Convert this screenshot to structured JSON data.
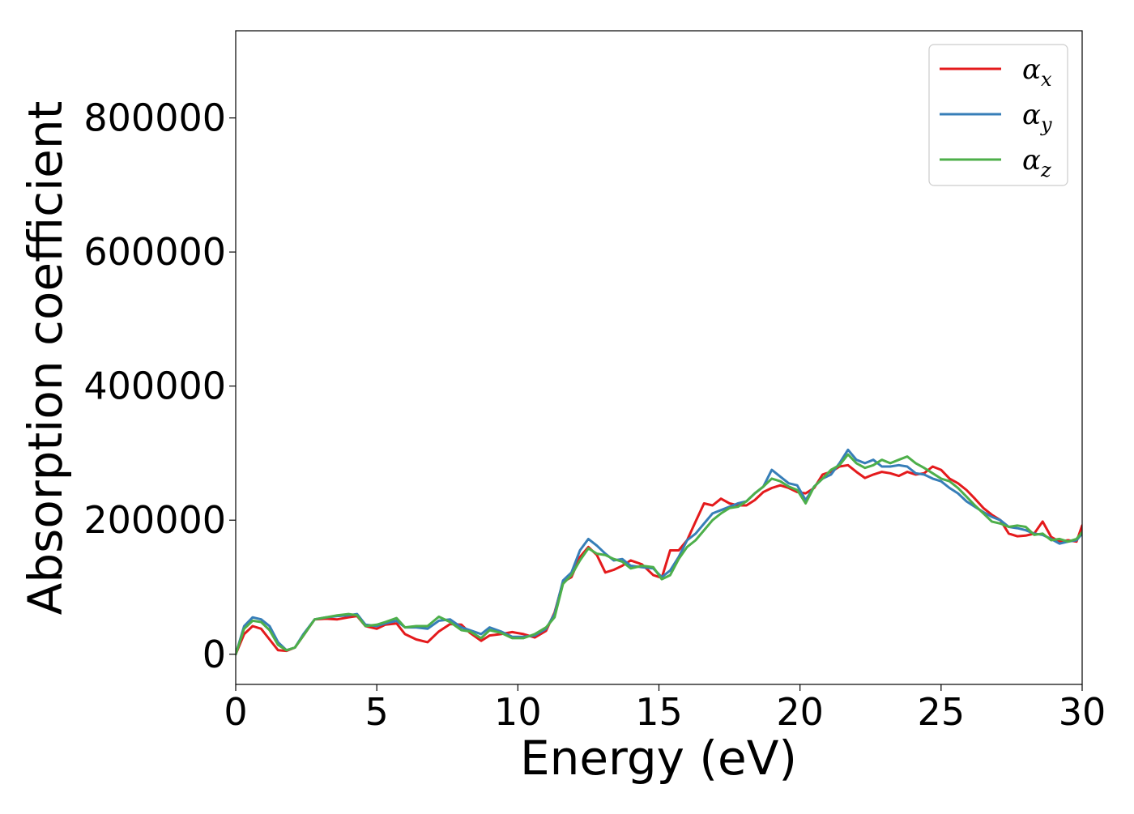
{
  "chart_data": {
    "type": "line",
    "title": "",
    "xlabel": "Energy (eV)",
    "ylabel": "Absorption coefficient",
    "xlim": [
      0,
      30
    ],
    "ylim": [
      -45000,
      930000
    ],
    "grid": false,
    "legend_position": "top-right",
    "xticks": [
      0,
      5,
      10,
      15,
      20,
      25,
      30
    ],
    "xtick_labels": [
      "0",
      "5",
      "10",
      "15",
      "20",
      "25",
      "30"
    ],
    "yticks": [
      0,
      200000,
      400000,
      600000,
      800000
    ],
    "ytick_labels": [
      "0",
      "200000",
      "400000",
      "600000",
      "800000"
    ],
    "series": [
      {
        "name": "αx",
        "symbol": "α",
        "subscript": "x",
        "color": "#e41a1c",
        "x": [
          0,
          0.3,
          0.6,
          0.9,
          1.2,
          1.5,
          1.8,
          2.1,
          2.4,
          2.8,
          3.2,
          3.6,
          4.0,
          4.3,
          4.6,
          5.0,
          5.3,
          5.7,
          6.0,
          6.4,
          6.8,
          7.2,
          7.6,
          8.0,
          8.3,
          8.7,
          9.0,
          9.4,
          9.8,
          10.2,
          10.6,
          11.0,
          11.3,
          11.6,
          11.9,
          12.2,
          12.5,
          12.8,
          13.1,
          13.4,
          13.7,
          14.0,
          14.4,
          14.8,
          15.1,
          15.4,
          15.7,
          16.0,
          16.3,
          16.6,
          16.9,
          17.2,
          17.5,
          17.8,
          18.1,
          18.4,
          18.7,
          19.0,
          19.3,
          19.6,
          19.9,
          20.2,
          20.5,
          20.8,
          21.1,
          21.4,
          21.7,
          22.0,
          22.3,
          22.6,
          22.9,
          23.2,
          23.5,
          23.8,
          24.1,
          24.4,
          24.7,
          25.0,
          25.3,
          25.6,
          25.9,
          26.2,
          26.5,
          26.8,
          27.1,
          27.4,
          27.7,
          28.0,
          28.3,
          28.6,
          28.9,
          29.2,
          29.5,
          29.8,
          30.0
        ],
        "y": [
          0,
          30000,
          42000,
          38000,
          22000,
          6000,
          5000,
          10000,
          28000,
          52000,
          53000,
          52000,
          55000,
          57000,
          42000,
          38000,
          44000,
          46000,
          30000,
          22000,
          18000,
          34000,
          45000,
          44000,
          32000,
          20000,
          28000,
          30000,
          33000,
          30000,
          25000,
          35000,
          62000,
          108000,
          115000,
          145000,
          160000,
          148000,
          122000,
          126000,
          132000,
          140000,
          134000,
          118000,
          114000,
          155000,
          155000,
          170000,
          198000,
          225000,
          222000,
          232000,
          225000,
          222000,
          222000,
          230000,
          242000,
          248000,
          252000,
          248000,
          242000,
          240000,
          248000,
          268000,
          272000,
          280000,
          282000,
          272000,
          263000,
          268000,
          272000,
          270000,
          266000,
          272000,
          268000,
          270000,
          280000,
          275000,
          262000,
          255000,
          245000,
          232000,
          218000,
          208000,
          200000,
          180000,
          176000,
          177000,
          180000,
          198000,
          175000,
          168000,
          170000,
          168000,
          192000
        ]
      },
      {
        "name": "αy",
        "symbol": "α",
        "subscript": "y",
        "color": "#377eb8",
        "x": [
          0,
          0.3,
          0.6,
          0.9,
          1.2,
          1.5,
          1.8,
          2.1,
          2.4,
          2.8,
          3.2,
          3.6,
          4.0,
          4.3,
          4.6,
          5.0,
          5.3,
          5.7,
          6.0,
          6.4,
          6.8,
          7.2,
          7.6,
          8.0,
          8.3,
          8.7,
          9.0,
          9.4,
          9.8,
          10.2,
          10.6,
          11.0,
          11.3,
          11.6,
          11.9,
          12.2,
          12.5,
          12.8,
          13.1,
          13.4,
          13.7,
          14.0,
          14.4,
          14.8,
          15.1,
          15.4,
          15.7,
          16.0,
          16.3,
          16.6,
          16.9,
          17.2,
          17.5,
          17.8,
          18.1,
          18.4,
          18.7,
          19.0,
          19.3,
          19.6,
          19.9,
          20.2,
          20.5,
          20.8,
          21.1,
          21.4,
          21.7,
          22.0,
          22.3,
          22.6,
          22.9,
          23.2,
          23.5,
          23.8,
          24.1,
          24.4,
          24.7,
          25.0,
          25.3,
          25.6,
          25.9,
          26.2,
          26.5,
          26.8,
          27.1,
          27.4,
          27.7,
          28.0,
          28.3,
          28.6,
          28.9,
          29.2,
          29.5,
          29.8,
          30.0
        ],
        "y": [
          0,
          42000,
          55000,
          52000,
          42000,
          18000,
          6000,
          10000,
          30000,
          52000,
          55000,
          57000,
          58000,
          60000,
          44000,
          42000,
          46000,
          50000,
          40000,
          40000,
          38000,
          50000,
          52000,
          40000,
          36000,
          30000,
          40000,
          34000,
          26000,
          26000,
          28000,
          38000,
          60000,
          110000,
          122000,
          155000,
          172000,
          162000,
          150000,
          140000,
          142000,
          132000,
          130000,
          128000,
          115000,
          125000,
          145000,
          170000,
          180000,
          195000,
          210000,
          215000,
          220000,
          225000,
          228000,
          240000,
          250000,
          275000,
          265000,
          255000,
          252000,
          230000,
          250000,
          262000,
          268000,
          285000,
          305000,
          290000,
          285000,
          290000,
          280000,
          280000,
          282000,
          280000,
          270000,
          268000,
          262000,
          258000,
          248000,
          240000,
          228000,
          220000,
          212000,
          205000,
          200000,
          190000,
          188000,
          185000,
          180000,
          178000,
          172000,
          165000,
          168000,
          170000,
          180000
        ]
      },
      {
        "name": "αz",
        "symbol": "α",
        "subscript": "z",
        "color": "#4daf4a",
        "x": [
          0,
          0.3,
          0.6,
          0.9,
          1.2,
          1.5,
          1.8,
          2.1,
          2.4,
          2.8,
          3.2,
          3.6,
          4.0,
          4.3,
          4.6,
          5.0,
          5.3,
          5.7,
          6.0,
          6.4,
          6.8,
          7.2,
          7.6,
          8.0,
          8.3,
          8.7,
          9.0,
          9.4,
          9.8,
          10.2,
          10.6,
          11.0,
          11.3,
          11.6,
          11.9,
          12.2,
          12.5,
          12.8,
          13.1,
          13.4,
          13.7,
          14.0,
          14.4,
          14.8,
          15.1,
          15.4,
          15.7,
          16.0,
          16.3,
          16.6,
          16.9,
          17.2,
          17.5,
          17.8,
          18.1,
          18.4,
          18.7,
          19.0,
          19.3,
          19.6,
          19.9,
          20.2,
          20.5,
          20.8,
          21.1,
          21.4,
          21.7,
          22.0,
          22.3,
          22.6,
          22.9,
          23.2,
          23.5,
          23.8,
          24.1,
          24.4,
          24.7,
          25.0,
          25.3,
          25.6,
          25.9,
          26.2,
          26.5,
          26.8,
          27.1,
          27.4,
          27.7,
          28.0,
          28.3,
          28.6,
          28.9,
          29.2,
          29.5,
          29.8,
          30.0
        ],
        "y": [
          0,
          38000,
          50000,
          48000,
          36000,
          14000,
          6000,
          10000,
          28000,
          52000,
          55000,
          58000,
          60000,
          58000,
          42000,
          44000,
          48000,
          54000,
          40000,
          42000,
          42000,
          56000,
          48000,
          36000,
          34000,
          24000,
          36000,
          32000,
          24000,
          24000,
          30000,
          40000,
          55000,
          105000,
          118000,
          140000,
          158000,
          150000,
          148000,
          142000,
          138000,
          128000,
          132000,
          130000,
          112000,
          118000,
          142000,
          160000,
          170000,
          185000,
          200000,
          210000,
          218000,
          220000,
          228000,
          240000,
          250000,
          262000,
          258000,
          250000,
          245000,
          225000,
          250000,
          262000,
          275000,
          282000,
          298000,
          285000,
          278000,
          282000,
          290000,
          285000,
          290000,
          295000,
          285000,
          278000,
          270000,
          262000,
          258000,
          248000,
          235000,
          222000,
          210000,
          198000,
          195000,
          190000,
          192000,
          190000,
          178000,
          180000,
          170000,
          172000,
          168000,
          172000,
          182000
        ]
      }
    ]
  }
}
